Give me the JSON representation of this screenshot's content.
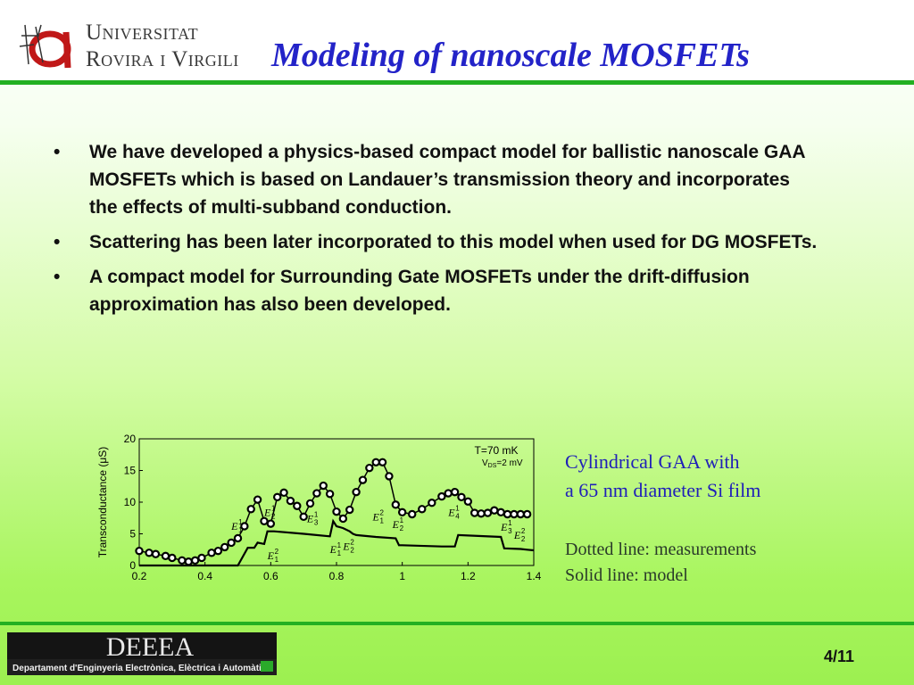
{
  "header": {
    "university_line1": "Universitat",
    "university_line2": "Rovira i Virgili",
    "title": "Modeling of nanoscale MOSFETs"
  },
  "bullets": [
    "We have developed a physics-based compact model for ballistic nanoscale GAA MOSFETs which is based on Landauer’s transmission theory and incorporates the effects of multi-subband conduction.",
    "Scattering has been later incorporated to this model when used for DG MOSFETs.",
    "A compact model for Surrounding Gate MOSFETs under the drift-diffusion approximation has also been developed."
  ],
  "bullet_symbol": "•",
  "caption": {
    "line1": "Cylindrical GAA with",
    "line2": "a 65 nm diameter Si film",
    "note1": "Dotted line: measurements",
    "note2": "Solid line: model"
  },
  "footer": {
    "dept_logo_text": "DEEEA",
    "dept_name": "Departament d'Enginyeria Electrònica, Elèctrica i Automàtica",
    "page": "4/11"
  },
  "colors": {
    "accent_green": "#22b022",
    "title_blue": "#2323c8",
    "caption_blue": "#2020b8"
  },
  "chart_data": {
    "type": "line",
    "xlabel": "",
    "ylabel": "Transconductance (μS)",
    "xlim": [
      0.2,
      1.4
    ],
    "ylim": [
      0,
      20
    ],
    "xticks": [
      "0.2",
      "0.4",
      "0.6",
      "0.8",
      "1",
      "1.2",
      "1.4"
    ],
    "xtick_values": [
      0.2,
      0.4,
      0.6,
      0.8,
      1.0,
      1.2,
      1.4
    ],
    "yticks": [
      "0",
      "5",
      "10",
      "15",
      "20"
    ],
    "ytick_values": [
      0,
      5,
      10,
      15,
      20
    ],
    "annotation_temp": "T=70 mK",
    "annotation_vds": "V",
    "annotation_vds_sub": "DS",
    "annotation_vds_val": "=2 mV",
    "series": [
      {
        "style": "dotted",
        "x": [
          0.2,
          0.23,
          0.25,
          0.28,
          0.3,
          0.33,
          0.35,
          0.37,
          0.39,
          0.42,
          0.44,
          0.46,
          0.48,
          0.5,
          0.52,
          0.54,
          0.56,
          0.58,
          0.6,
          0.62,
          0.64,
          0.66,
          0.68,
          0.7,
          0.72,
          0.74,
          0.76,
          0.78,
          0.8,
          0.82,
          0.84,
          0.86,
          0.88,
          0.9,
          0.92,
          0.94,
          0.96,
          0.98,
          1.0,
          1.03,
          1.06,
          1.09,
          1.12,
          1.14,
          1.16,
          1.18,
          1.2,
          1.22,
          1.24,
          1.26,
          1.28,
          1.3,
          1.32,
          1.34,
          1.36,
          1.38
        ],
        "values": [
          2.3,
          2.0,
          1.8,
          1.5,
          1.2,
          0.8,
          0.6,
          0.8,
          1.2,
          2.0,
          2.3,
          2.9,
          3.6,
          4.3,
          6.2,
          8.9,
          10.4,
          7.0,
          6.6,
          10.8,
          11.5,
          10.2,
          9.4,
          7.7,
          9.8,
          11.4,
          12.6,
          11.3,
          8.5,
          7.4,
          8.8,
          11.6,
          13.5,
          15.4,
          16.3,
          16.3,
          14.1,
          9.6,
          8.4,
          8.1,
          8.9,
          9.9,
          10.9,
          11.4,
          11.6,
          10.8,
          10.1,
          8.3,
          8.2,
          8.3,
          8.7,
          8.4,
          8.1,
          8.1,
          8.1,
          8.1
        ]
      },
      {
        "style": "solid",
        "x": [
          0.2,
          0.3,
          0.39,
          0.4,
          0.46,
          0.5,
          0.53,
          0.55,
          0.56,
          0.58,
          0.59,
          0.61,
          0.7,
          0.78,
          0.79,
          0.8,
          0.82,
          0.84,
          0.85,
          0.86,
          0.92,
          0.98,
          0.99,
          1.0,
          1.12,
          1.16,
          1.17,
          1.3,
          1.31,
          1.36,
          1.38,
          1.4
        ],
        "values": [
          0.0,
          0.0,
          0.0,
          0.0,
          0.0,
          0.0,
          2.8,
          2.8,
          3.6,
          3.4,
          5.4,
          5.4,
          5.0,
          4.6,
          7.0,
          6.2,
          5.9,
          5.4,
          5.0,
          4.8,
          4.5,
          4.3,
          3.2,
          3.2,
          3.0,
          3.0,
          4.8,
          4.5,
          2.7,
          2.6,
          2.5,
          2.4
        ]
      }
    ],
    "labels": [
      {
        "b": "E",
        "sup": "1",
        "sub": "1",
        "x": 0.48,
        "y": 5.6
      },
      {
        "b": "E",
        "sup": "1",
        "sub": "2",
        "x": 0.58,
        "y": 7.8
      },
      {
        "b": "E",
        "sup": "2",
        "sub": "1",
        "x": 0.59,
        "y": 1.0
      },
      {
        "b": "E",
        "sup": "1",
        "sub": "3",
        "x": 0.71,
        "y": 6.8
      },
      {
        "b": "E",
        "sup": "1",
        "sub": "1",
        "x": 0.78,
        "y": 2.0
      },
      {
        "b": "E",
        "sup": "2",
        "sub": "2",
        "x": 0.82,
        "y": 2.5
      },
      {
        "b": "E",
        "sup": "2",
        "sub": "1",
        "x": 0.91,
        "y": 7.1
      },
      {
        "b": "E",
        "sup": "1",
        "sub": "2",
        "x": 0.97,
        "y": 5.9
      },
      {
        "b": "E",
        "sup": "1",
        "sub": "4",
        "x": 1.14,
        "y": 7.8
      },
      {
        "b": "E",
        "sup": "1",
        "sub": "3",
        "x": 1.3,
        "y": 5.5
      },
      {
        "b": "E",
        "sup": "2",
        "sub": "2",
        "x": 1.34,
        "y": 4.2
      }
    ]
  }
}
